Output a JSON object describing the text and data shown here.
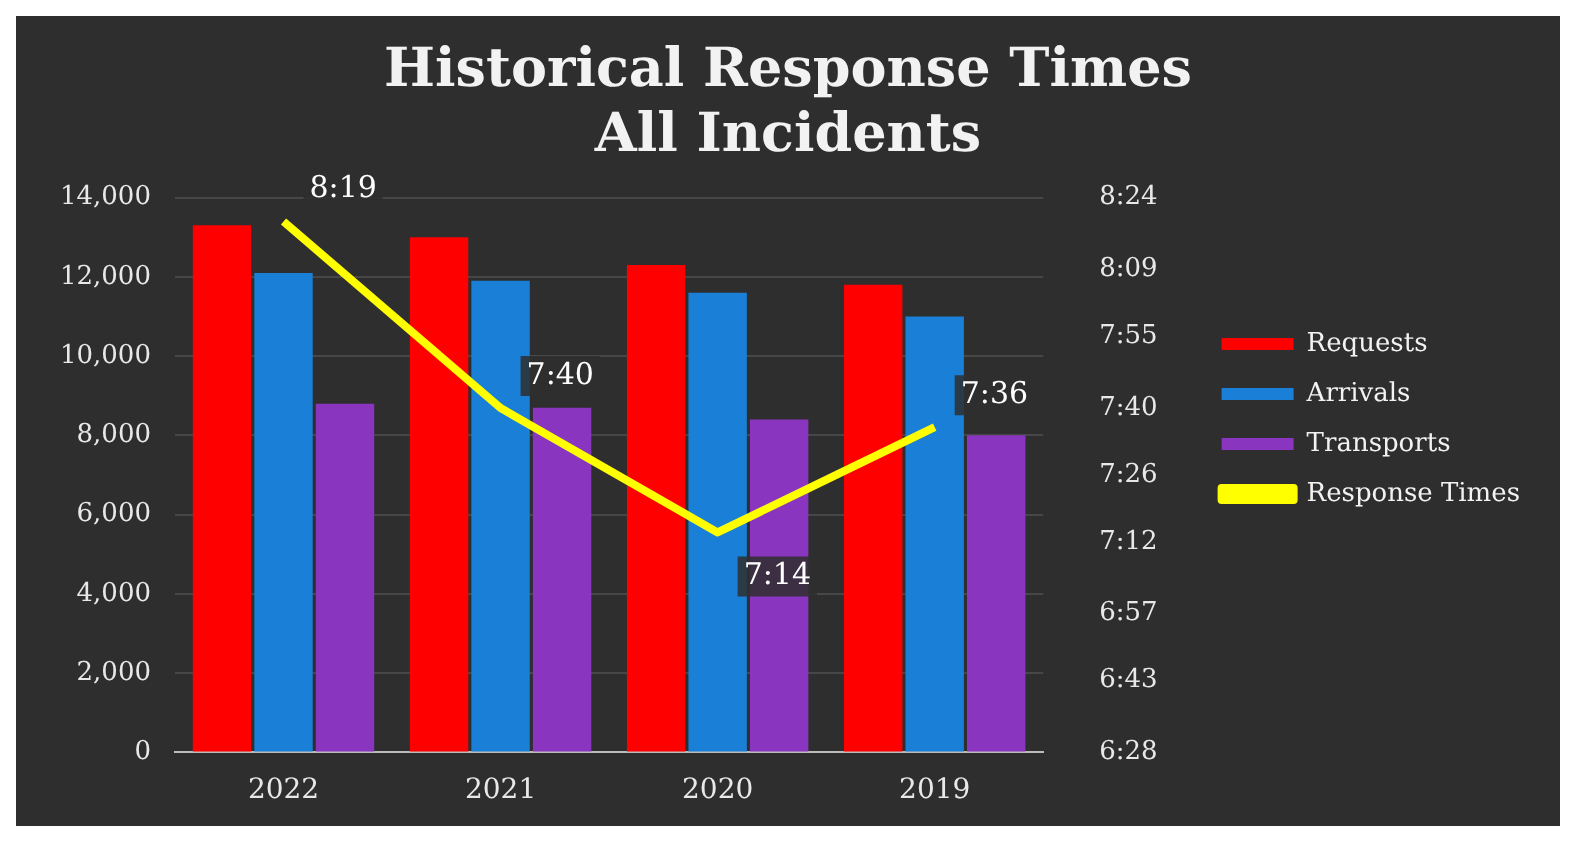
{
  "chart_data": {
    "type": "bar",
    "title": "Historical Response Times\nAll Incidents",
    "categories": [
      "2022",
      "2021",
      "2020",
      "2019"
    ],
    "series": [
      {
        "name": "Requests",
        "color": "#ff0000",
        "values": [
          13300,
          13000,
          12300,
          11800
        ]
      },
      {
        "name": "Arrivals",
        "color": "#1a7fd6",
        "values": [
          12100,
          11900,
          11600,
          11000
        ]
      },
      {
        "name": "Transports",
        "color": "#8a35c0",
        "values": [
          8800,
          8700,
          8400,
          8000
        ]
      },
      {
        "name": "Response Times",
        "type": "line",
        "axis": "y2",
        "color": "#ffff00",
        "values": [
          8.3167,
          7.6667,
          7.2333,
          7.6
        ],
        "value_labels": [
          "8:19",
          "7:40",
          "7:14",
          "7:36"
        ]
      }
    ],
    "ylim": [
      0,
      14000
    ],
    "yticks": [
      0,
      {
        "value": 2000,
        "label": "2,000"
      },
      {
        "value": 4000,
        "label": "4,000"
      },
      {
        "value": 6000,
        "label": "6,000"
      },
      {
        "value": 8000,
        "label": "8,000"
      },
      {
        "value": 10000,
        "label": "10,000"
      },
      {
        "value": 12000,
        "label": "12,000"
      },
      {
        "value": 14000,
        "label": "14,000"
      }
    ],
    "y2lim": [
      6.4667,
      8.4
    ],
    "y2ticks": [
      {
        "value": 6.4667,
        "label": "6:28"
      },
      {
        "value": 6.7167,
        "label": "6:43"
      },
      {
        "value": 6.95,
        "label": "6:57"
      },
      {
        "value": 7.2,
        "label": "7:12"
      },
      {
        "value": 7.4333,
        "label": "7:26"
      },
      {
        "value": 7.6667,
        "label": "7:40"
      },
      {
        "value": 7.9167,
        "label": "7:55"
      },
      {
        "value": 8.15,
        "label": "8:09"
      },
      {
        "value": 8.4,
        "label": "8:24"
      }
    ],
    "grid": "y",
    "legend": "right",
    "marker": "none"
  }
}
